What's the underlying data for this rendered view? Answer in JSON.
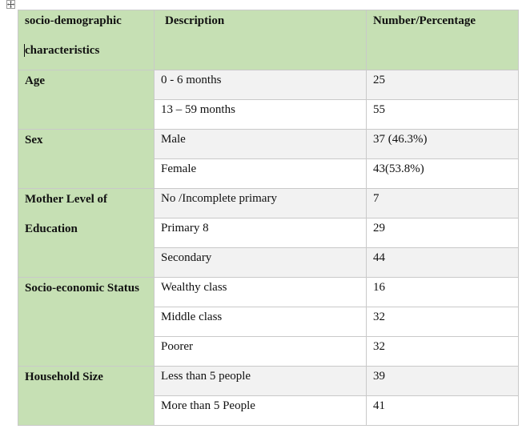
{
  "table": {
    "headers": {
      "col1_line1": "socio-demographic",
      "col1_line2": "characteristics",
      "col2": "Description",
      "col3": "Number/Percentage"
    },
    "groups": [
      {
        "label": "Age",
        "rows": [
          {
            "description": "0 - 6 months",
            "value": "25"
          },
          {
            "description": "13 – 59 months",
            "value": "55"
          }
        ]
      },
      {
        "label": "Sex",
        "rows": [
          {
            "description": "Male",
            "value": "37 (46.3%)"
          },
          {
            "description": "Female",
            "value": "43(53.8%)"
          }
        ]
      },
      {
        "label_line1": "Mother Level of",
        "label_line2": "Education",
        "rows": [
          {
            "description": "No /Incomplete primary",
            "value": "7"
          },
          {
            "description": "Primary 8",
            "value": "29"
          },
          {
            "description": "Secondary",
            "value": "44"
          }
        ]
      },
      {
        "label": "Socio-economic Status",
        "rows": [
          {
            "description": "Wealthy class",
            "value": "16"
          },
          {
            "description": "Middle class",
            "value": "32"
          },
          {
            "description": "Poorer",
            "value": "32"
          }
        ]
      },
      {
        "label": "Household Size",
        "rows": [
          {
            "description": "Less than 5 people",
            "value": "39"
          },
          {
            "description": "More than 5 People",
            "value": "41"
          }
        ]
      }
    ]
  }
}
